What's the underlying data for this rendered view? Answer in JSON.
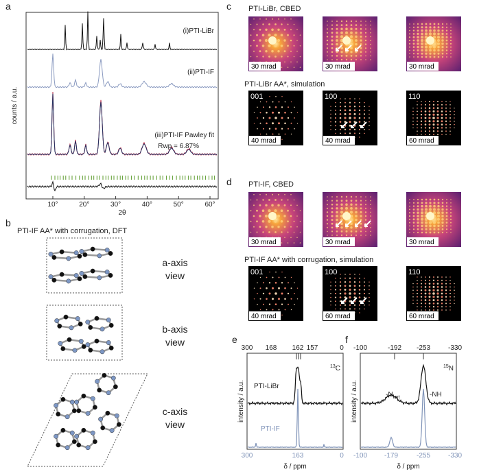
{
  "panels": {
    "a": {
      "label": "a",
      "traces": [
        "(i)PTI-LiBr",
        "(ii)PTI-IF",
        "(iii)PTI-IF Pawley fit"
      ],
      "rwp": "Rwp = 6.87%",
      "y_axis": "counts / a.u.",
      "x_axis": "2θ",
      "x_ticks": [
        "10°",
        "20°",
        "30°",
        "40°",
        "50°",
        "60°"
      ]
    },
    "b": {
      "label": "b",
      "title": "PTI-IF AA* with corrugation, DFT",
      "views": [
        [
          "a-axis",
          "view"
        ],
        [
          "b-axis",
          "view"
        ],
        [
          "c-axis",
          "view"
        ]
      ]
    },
    "c": {
      "label": "c",
      "cbed_title": "PTI-LiBr, CBED",
      "cbed_scales": [
        "30 mrad",
        "30 mrad",
        "30 mrad"
      ],
      "sim_title": "PTI-LiBr AA*, simulation",
      "sim_zones": [
        "001",
        "100",
        "110"
      ],
      "sim_scales": [
        "40 mrad",
        "40 mrad",
        "60 mrad"
      ]
    },
    "d": {
      "label": "d",
      "cbed_title": "PTI-IF, CBED",
      "cbed_scales": [
        "30 mrad",
        "30 mrad",
        "30 mrad"
      ],
      "sim_title": "PTI-IF AA* with corrugation, simulation",
      "sim_zones": [
        "001",
        "100",
        "110"
      ],
      "sim_scales": [
        "40 mrad",
        "60 mrad",
        "60 mrad"
      ]
    },
    "e": {
      "label": "e",
      "top_ticks": [
        "300",
        "168",
        "162",
        "157",
        "0"
      ],
      "isotope_mass": "13",
      "isotope": "C",
      "traces": [
        "PTI-LiBr",
        "PTI-IF"
      ],
      "y_axis": "intensity / a.u.",
      "bottom_ticks": [
        "300",
        "163",
        "0"
      ],
      "x_axis": "δ / ppm"
    },
    "f": {
      "label": "f",
      "top_ticks": [
        "-100",
        "-192",
        "-253",
        "-330"
      ],
      "isotope_mass": "15",
      "isotope": "N",
      "peak_labels": [
        {
          "main": "-N",
          "sub": "tert"
        },
        {
          "main": "-NH"
        }
      ],
      "y_axis": "intensity / a.u.",
      "bottom_ticks": [
        "-100",
        "-179",
        "-255",
        "-330"
      ],
      "x_axis": "δ / ppm"
    }
  }
}
